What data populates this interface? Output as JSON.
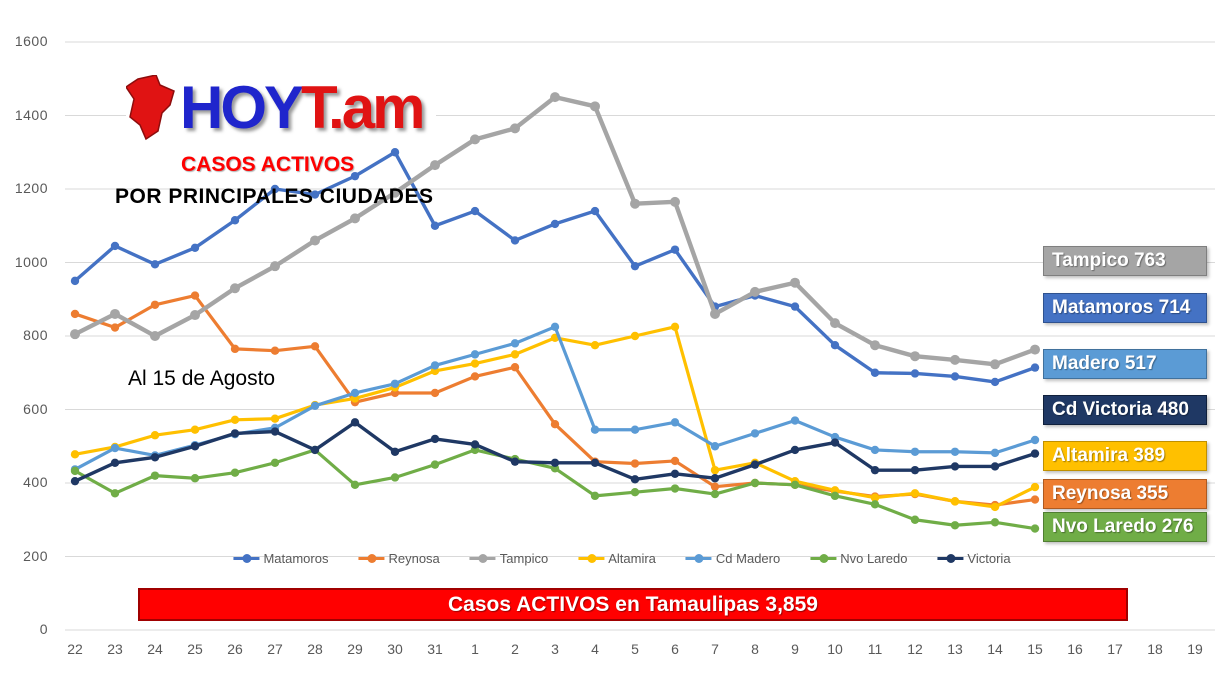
{
  "logo": {
    "blue": "HOY",
    "red": "T.am",
    "blue_color": "#1f25cc",
    "red_color": "#e01313"
  },
  "header": {
    "subtitle1": "CASOS ACTIVOS",
    "subtitle2": "POR PRINCIPALES CIUDADES"
  },
  "annotation": {
    "as_of": "Al 15 de Agosto"
  },
  "banner": {
    "text": "Casos ACTIVOS en Tamaulipas 3,859",
    "bg": "#ff0000",
    "border": "#a00000"
  },
  "chart_data": {
    "type": "line",
    "title": "CASOS ACTIVOS POR PRINCIPALES CIUDADES",
    "xlabel": "",
    "ylabel": "",
    "ylim": [
      0,
      1600
    ],
    "grid": true,
    "legend_position": "bottom",
    "y_ticks": [
      0,
      200,
      400,
      600,
      800,
      1000,
      1200,
      1400,
      1600
    ],
    "x_labels": [
      "22",
      "23",
      "24",
      "25",
      "26",
      "27",
      "28",
      "29",
      "30",
      "31",
      "1",
      "2",
      "3",
      "4",
      "5",
      "6",
      "7",
      "8",
      "9",
      "10",
      "11",
      "12",
      "13",
      "14",
      "15",
      "16",
      "17",
      "18",
      "19"
    ],
    "series": [
      {
        "name": "Matamoros",
        "color": "#4472C4",
        "width": 3.4,
        "values": [
          950,
          1045,
          995,
          1040,
          1115,
          1200,
          1185,
          1235,
          1300,
          1100,
          1140,
          1060,
          1105,
          1140,
          990,
          1035,
          880,
          910,
          880,
          775,
          700,
          698,
          690,
          675,
          714
        ]
      },
      {
        "name": "Reynosa",
        "color": "#ED7D31",
        "width": 3.2,
        "values": [
          860,
          823,
          885,
          910,
          765,
          760,
          772,
          620,
          645,
          645,
          690,
          715,
          560,
          458,
          453,
          460,
          390,
          400,
          395,
          378,
          363,
          370,
          350,
          340,
          355
        ]
      },
      {
        "name": "Tampico",
        "color": "#A5A5A5",
        "width": 4.4,
        "values": [
          805,
          860,
          800,
          857,
          930,
          990,
          1060,
          1120,
          1190,
          1265,
          1335,
          1365,
          1450,
          1425,
          1160,
          1165,
          860,
          920,
          945,
          835,
          775,
          745,
          735,
          723,
          763
        ]
      },
      {
        "name": "Altamira",
        "color": "#FFC000",
        "width": 3.2,
        "values": [
          478,
          498,
          530,
          545,
          572,
          575,
          612,
          630,
          660,
          705,
          725,
          750,
          795,
          775,
          800,
          825,
          435,
          455,
          405,
          380,
          360,
          372,
          350,
          335,
          389
        ]
      },
      {
        "name": "Cd Madero",
        "color": "#5B9BD5",
        "width": 3.2,
        "values": [
          437,
          495,
          475,
          503,
          533,
          550,
          610,
          645,
          670,
          720,
          750,
          780,
          825,
          545,
          545,
          565,
          500,
          535,
          570,
          525,
          490,
          485,
          485,
          482,
          517
        ]
      },
      {
        "name": "Nvo Laredo",
        "color": "#70AD47",
        "width": 3.2,
        "values": [
          433,
          372,
          420,
          413,
          428,
          455,
          490,
          395,
          415,
          450,
          490,
          465,
          440,
          365,
          375,
          385,
          370,
          400,
          395,
          365,
          342,
          300,
          285,
          293,
          276
        ]
      },
      {
        "name": "Victoria",
        "color": "#1F3864",
        "width": 3.4,
        "values": [
          405,
          455,
          470,
          500,
          535,
          540,
          490,
          565,
          485,
          520,
          505,
          458,
          455,
          455,
          410,
          425,
          413,
          450,
          490,
          510,
          435,
          435,
          445,
          445,
          480
        ]
      }
    ],
    "end_labels": [
      {
        "text": "Tampico 763",
        "bg": "#A5A5A5",
        "border": "#7F7F7F",
        "top": 246
      },
      {
        "text": "Matamoros 714",
        "bg": "#4472C4",
        "border": "#2F528F",
        "top": 293
      },
      {
        "text": "Madero 517",
        "bg": "#5B9BD5",
        "border": "#41719C",
        "top": 349
      },
      {
        "text": "Cd Victoria 480",
        "bg": "#1F3864",
        "border": "#10203C",
        "top": 395
      },
      {
        "text": "Altamira 389",
        "bg": "#FFC000",
        "border": "#BF9000",
        "top": 441
      },
      {
        "text": "Reynosa 355",
        "bg": "#ED7D31",
        "border": "#AE5A21",
        "top": 479
      },
      {
        "text": "Nvo Laredo 276",
        "bg": "#70AD47",
        "border": "#507E32",
        "top": 512
      }
    ]
  }
}
